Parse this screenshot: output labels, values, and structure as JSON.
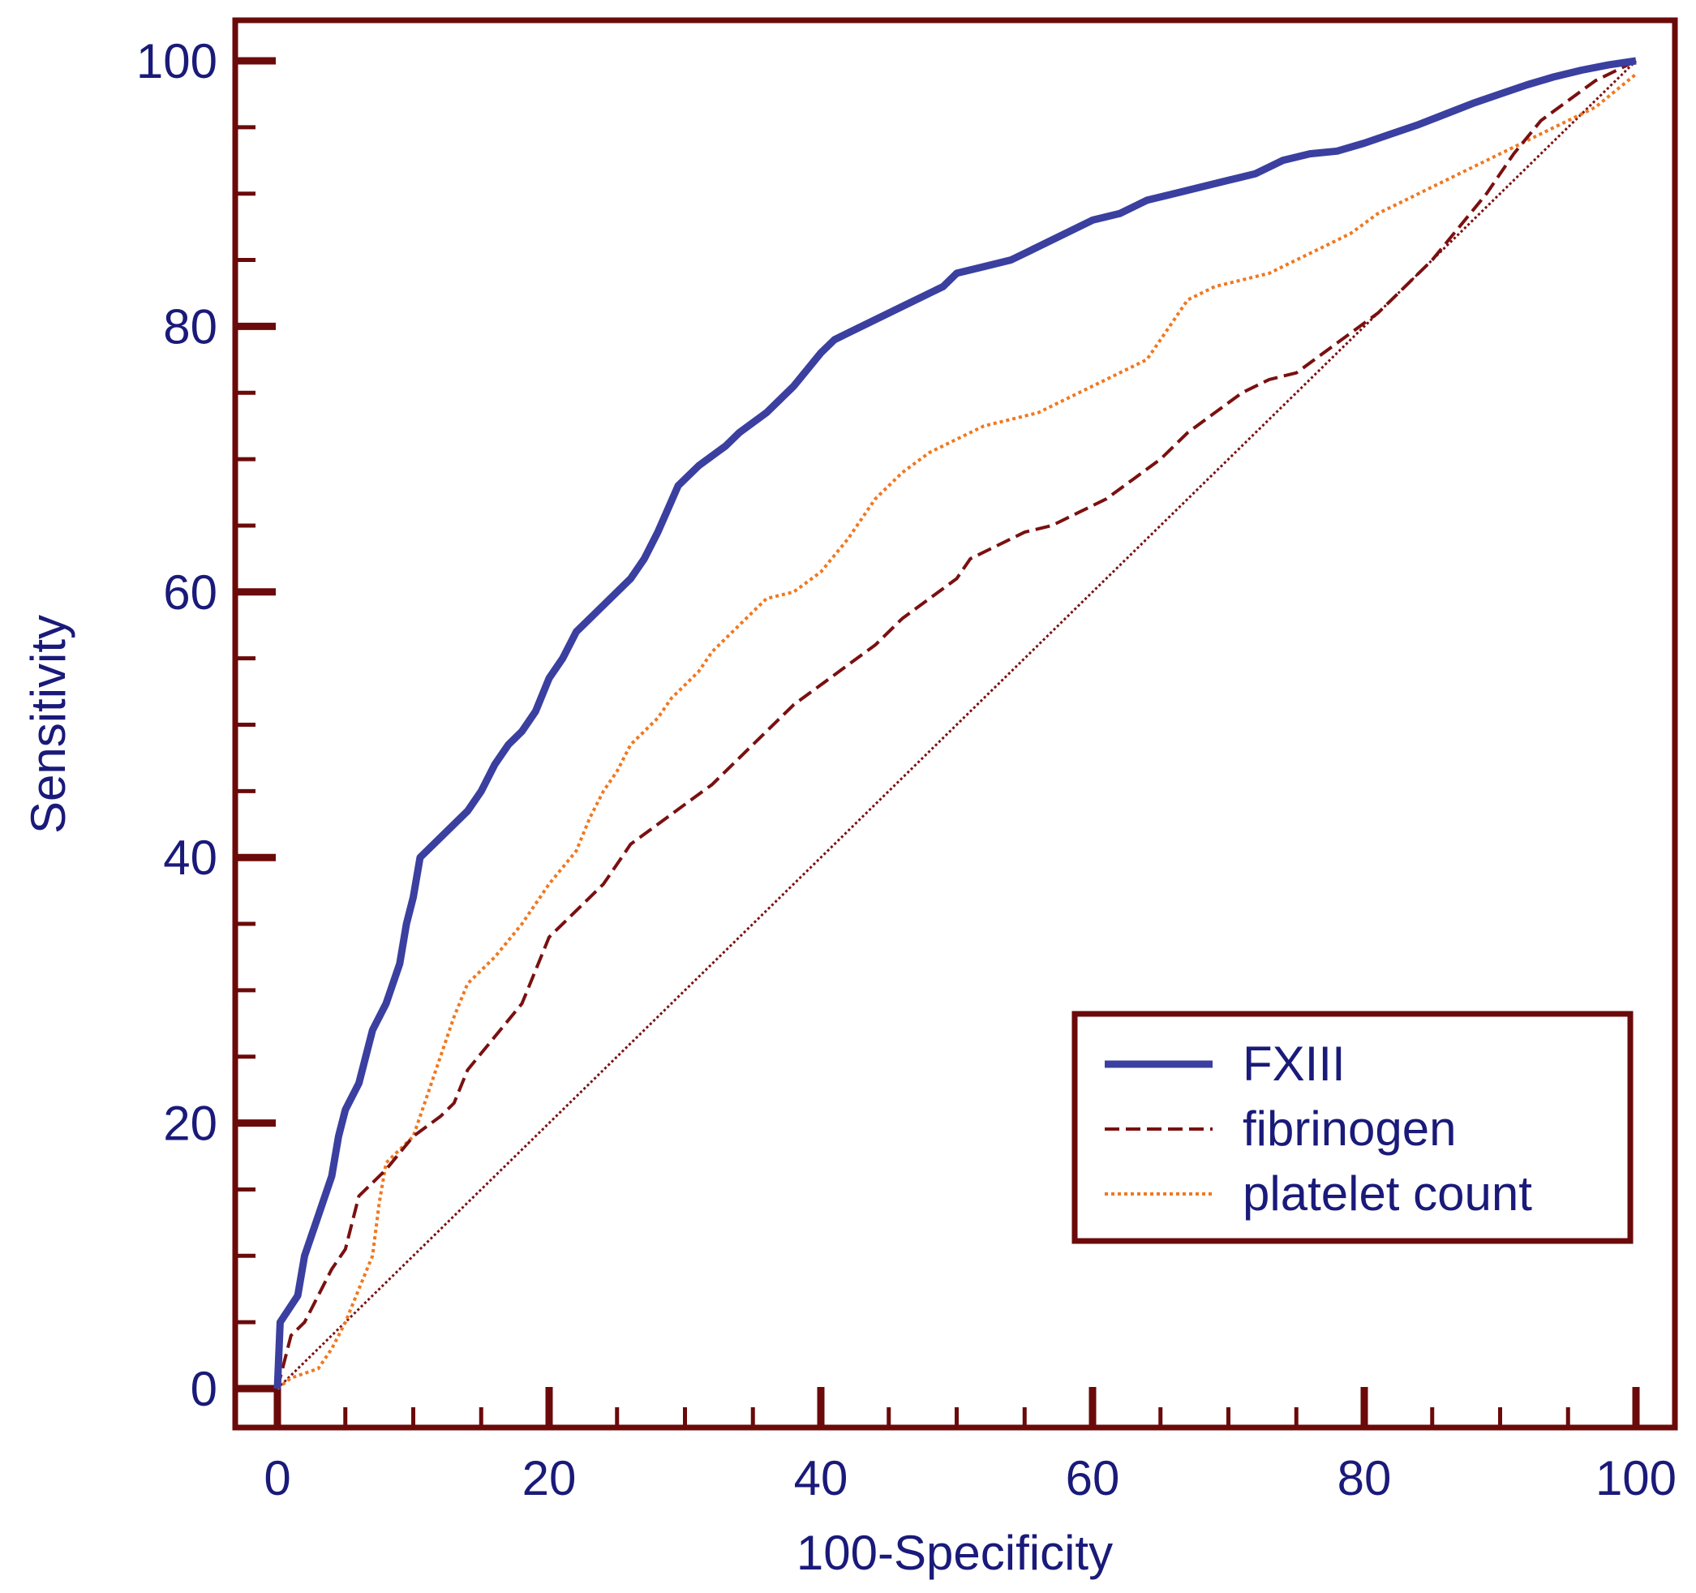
{
  "chart_data": {
    "type": "line",
    "xlabel": "100-Specificity",
    "ylabel": "Sensitivity",
    "xlim": [
      0,
      100
    ],
    "ylim": [
      0,
      100
    ],
    "x_ticks": [
      0,
      20,
      40,
      60,
      80,
      100
    ],
    "y_ticks": [
      0,
      20,
      40,
      60,
      80,
      100
    ],
    "x_tick_labels": [
      "0",
      "20",
      "40",
      "60",
      "80",
      "100"
    ],
    "y_tick_labels": [
      "0",
      "20",
      "40",
      "60",
      "80",
      "100"
    ],
    "legend_position": "bottom-right",
    "grid": false,
    "colors": {
      "frame": "#6b0a0a",
      "text": "#1a1a7a"
    },
    "series": [
      {
        "name": "FXIII",
        "color": "#3a3fa0",
        "style": "solid",
        "points": [
          [
            0,
            0
          ],
          [
            0.2,
            5
          ],
          [
            1.5,
            7
          ],
          [
            2,
            10
          ],
          [
            3,
            13
          ],
          [
            4,
            16
          ],
          [
            4.5,
            19
          ],
          [
            5,
            21
          ],
          [
            6,
            23
          ],
          [
            7,
            27
          ],
          [
            8,
            29
          ],
          [
            9,
            32
          ],
          [
            9.5,
            35
          ],
          [
            10,
            37
          ],
          [
            10.5,
            40
          ],
          [
            12,
            41.5
          ],
          [
            14,
            43.5
          ],
          [
            15,
            45
          ],
          [
            16,
            47
          ],
          [
            17,
            48.5
          ],
          [
            18,
            49.5
          ],
          [
            19,
            51
          ],
          [
            20,
            53.5
          ],
          [
            21,
            55
          ],
          [
            22,
            57
          ],
          [
            23,
            58
          ],
          [
            24,
            59
          ],
          [
            26,
            61
          ],
          [
            27,
            62.5
          ],
          [
            28,
            64.5
          ],
          [
            29.5,
            68
          ],
          [
            31,
            69.5
          ],
          [
            33,
            71
          ],
          [
            34,
            72
          ],
          [
            36,
            73.5
          ],
          [
            38,
            75.5
          ],
          [
            40,
            78
          ],
          [
            41,
            79
          ],
          [
            42,
            79.5
          ],
          [
            44,
            80.5
          ],
          [
            46,
            81.5
          ],
          [
            48,
            82.5
          ],
          [
            49,
            83
          ],
          [
            50,
            84
          ],
          [
            52,
            84.5
          ],
          [
            54,
            85
          ],
          [
            56,
            86
          ],
          [
            58,
            87
          ],
          [
            60,
            88
          ],
          [
            62,
            88.5
          ],
          [
            64,
            89.5
          ],
          [
            66,
            90
          ],
          [
            68,
            90.5
          ],
          [
            70,
            91
          ],
          [
            72,
            91.5
          ],
          [
            74,
            92.5
          ],
          [
            76,
            93
          ],
          [
            78,
            93.2
          ],
          [
            80,
            93.8
          ],
          [
            82,
            94.5
          ],
          [
            84,
            95.2
          ],
          [
            86,
            96
          ],
          [
            88,
            96.8
          ],
          [
            90,
            97.5
          ],
          [
            92,
            98.2
          ],
          [
            94,
            98.8
          ],
          [
            96,
            99.3
          ],
          [
            98,
            99.7
          ],
          [
            100,
            100
          ]
        ]
      },
      {
        "name": "fibrinogen",
        "color": "#7a1010",
        "style": "dashed",
        "points": [
          [
            0,
            0
          ],
          [
            0.5,
            2
          ],
          [
            1,
            4
          ],
          [
            2,
            5
          ],
          [
            3,
            7
          ],
          [
            4,
            9
          ],
          [
            5,
            10.5
          ],
          [
            6,
            14.5
          ],
          [
            8,
            16.5
          ],
          [
            10,
            19
          ],
          [
            12,
            20.5
          ],
          [
            13,
            21.5
          ],
          [
            14,
            24
          ],
          [
            16,
            26.5
          ],
          [
            18,
            29
          ],
          [
            19,
            31.5
          ],
          [
            20,
            34
          ],
          [
            22,
            36
          ],
          [
            24,
            38
          ],
          [
            25,
            39.5
          ],
          [
            26,
            41
          ],
          [
            28,
            42.5
          ],
          [
            30,
            44
          ],
          [
            32,
            45.5
          ],
          [
            34,
            47.5
          ],
          [
            36,
            49.5
          ],
          [
            38,
            51.5
          ],
          [
            40,
            53
          ],
          [
            42,
            54.5
          ],
          [
            44,
            56
          ],
          [
            46,
            58
          ],
          [
            48,
            59.5
          ],
          [
            50,
            61
          ],
          [
            51,
            62.5
          ],
          [
            53,
            63.5
          ],
          [
            55,
            64.5
          ],
          [
            57,
            65
          ],
          [
            59,
            66
          ],
          [
            61,
            67
          ],
          [
            63,
            68.5
          ],
          [
            65,
            70
          ],
          [
            67,
            72
          ],
          [
            69,
            73.5
          ],
          [
            71,
            75
          ],
          [
            73,
            76
          ],
          [
            75,
            76.5
          ],
          [
            77,
            78
          ],
          [
            79,
            79.5
          ],
          [
            81,
            81
          ],
          [
            83,
            83
          ],
          [
            85,
            85
          ],
          [
            87,
            87.5
          ],
          [
            89,
            90
          ],
          [
            91,
            93
          ],
          [
            93,
            95.5
          ],
          [
            95,
            97
          ],
          [
            97,
            98.5
          ],
          [
            100,
            100
          ]
        ]
      },
      {
        "name": "platelet count",
        "color": "#f07820",
        "style": "dotted",
        "points": [
          [
            0,
            0
          ],
          [
            1,
            0.8
          ],
          [
            3,
            1.5
          ],
          [
            4,
            3
          ],
          [
            5,
            5
          ],
          [
            6,
            7.5
          ],
          [
            7,
            10
          ],
          [
            7.5,
            14
          ],
          [
            8,
            17
          ],
          [
            10,
            19
          ],
          [
            11,
            22
          ],
          [
            12,
            25
          ],
          [
            13,
            28
          ],
          [
            14,
            30.5
          ],
          [
            16,
            32.5
          ],
          [
            18,
            35
          ],
          [
            20,
            38
          ],
          [
            22,
            40.5
          ],
          [
            23,
            43
          ],
          [
            24,
            45
          ],
          [
            25,
            46.5
          ],
          [
            26,
            48.5
          ],
          [
            28,
            50.5
          ],
          [
            29,
            52
          ],
          [
            31,
            54
          ],
          [
            32,
            55.5
          ],
          [
            34,
            57.5
          ],
          [
            36,
            59.5
          ],
          [
            38,
            60
          ],
          [
            40,
            61.5
          ],
          [
            42,
            64
          ],
          [
            44,
            67
          ],
          [
            46,
            69
          ],
          [
            48,
            70.5
          ],
          [
            50,
            71.5
          ],
          [
            52,
            72.5
          ],
          [
            54,
            73
          ],
          [
            56,
            73.5
          ],
          [
            58,
            74.5
          ],
          [
            60,
            75.5
          ],
          [
            62,
            76.5
          ],
          [
            64,
            77.5
          ],
          [
            65,
            79
          ],
          [
            67,
            82
          ],
          [
            69,
            83
          ],
          [
            71,
            83.5
          ],
          [
            73,
            84
          ],
          [
            75,
            85
          ],
          [
            77,
            86
          ],
          [
            79,
            87
          ],
          [
            81,
            88.5
          ],
          [
            83,
            89.5
          ],
          [
            85,
            90.5
          ],
          [
            87,
            91.5
          ],
          [
            89,
            92.5
          ],
          [
            91,
            93.5
          ],
          [
            93,
            94.5
          ],
          [
            95,
            95.5
          ],
          [
            97,
            96.5
          ],
          [
            100,
            99
          ]
        ]
      },
      {
        "name": "",
        "color": "#7a1010",
        "style": "diagonal",
        "points": [
          [
            0,
            0
          ],
          [
            100,
            100
          ]
        ]
      }
    ]
  }
}
